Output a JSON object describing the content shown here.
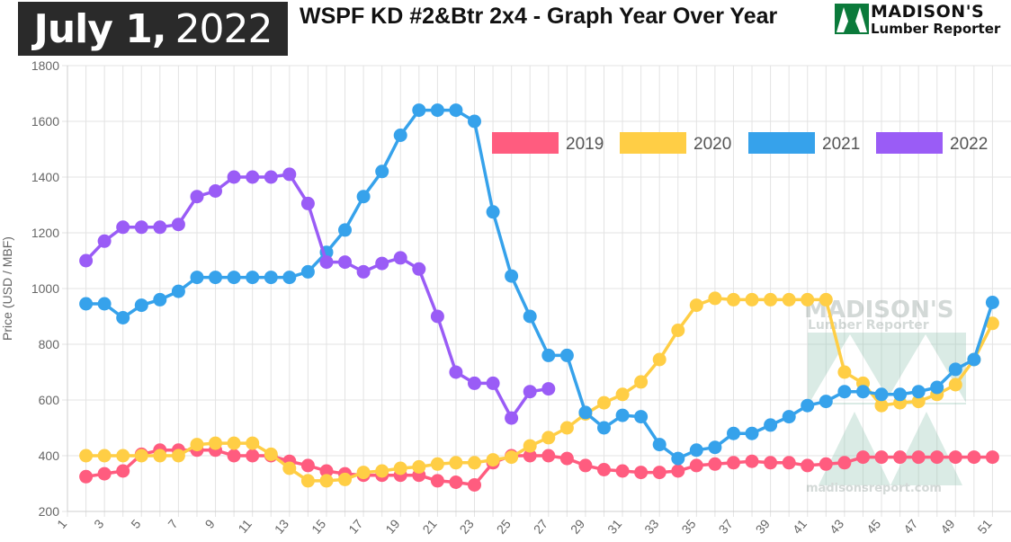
{
  "header": {
    "date_month_day": "July 1,",
    "date_year": "2022",
    "title": "WSPF KD #2&Btr 2x4 - Graph Year Over Year",
    "logo_name": "MADISON'S",
    "logo_sub": "Lumber Reporter"
  },
  "watermark": {
    "name": "MADISON'S",
    "sub": "Lumber Reporter",
    "url": "madisonsreport.com"
  },
  "colors": {
    "2019": "#ff5c7f",
    "2020": "#ffce45",
    "2021": "#36a2eb",
    "2022": "#9a5cf6"
  },
  "chart_data": {
    "type": "line",
    "ylabel": "Price (USD / MBF)",
    "xlabel": "",
    "ylim": [
      200,
      1800
    ],
    "yticks": [
      200,
      400,
      600,
      800,
      1000,
      1200,
      1400,
      1600,
      1800
    ],
    "x": [
      1,
      2,
      3,
      4,
      5,
      6,
      7,
      8,
      9,
      10,
      11,
      12,
      13,
      14,
      15,
      16,
      17,
      18,
      19,
      20,
      21,
      22,
      23,
      24,
      25,
      26,
      27,
      28,
      29,
      30,
      31,
      32,
      33,
      34,
      35,
      36,
      37,
      38,
      39,
      40,
      41,
      42,
      43,
      44,
      45,
      46,
      47,
      48,
      49,
      50,
      51
    ],
    "xtick_labels": [
      "1",
      "3",
      "5",
      "7",
      "9",
      "11",
      "13",
      "15",
      "17",
      "19",
      "21",
      "23",
      "25",
      "27",
      "29",
      "31",
      "33",
      "35",
      "37",
      "39",
      "41",
      "43",
      "45",
      "47",
      "49",
      "51"
    ],
    "grid": true,
    "legend_position": "top-right",
    "series": [
      {
        "name": "2019",
        "x": [
          2,
          3,
          4,
          5,
          6,
          7,
          8,
          9,
          10,
          11,
          12,
          13,
          14,
          15,
          16,
          17,
          18,
          19,
          20,
          21,
          22,
          23,
          24,
          25,
          26,
          27,
          28,
          29,
          30,
          31,
          32,
          33,
          34,
          35,
          36,
          37,
          38,
          39,
          40,
          41,
          42,
          43,
          44,
          45,
          46,
          47,
          48,
          49,
          50,
          51
        ],
        "values": [
          325,
          335,
          345,
          405,
          420,
          420,
          420,
          420,
          400,
          400,
          400,
          380,
          365,
          345,
          335,
          330,
          330,
          330,
          330,
          310,
          305,
          295,
          375,
          400,
          400,
          400,
          390,
          365,
          350,
          345,
          340,
          340,
          345,
          365,
          370,
          375,
          380,
          375,
          375,
          365,
          370,
          375,
          395,
          395,
          395,
          395,
          395,
          395,
          395,
          395
        ]
      },
      {
        "name": "2020",
        "x": [
          2,
          3,
          4,
          5,
          6,
          7,
          8,
          9,
          10,
          11,
          12,
          13,
          14,
          15,
          16,
          17,
          18,
          19,
          20,
          21,
          22,
          23,
          24,
          25,
          26,
          27,
          28,
          29,
          30,
          31,
          32,
          33,
          34,
          35,
          36,
          37,
          38,
          39,
          40,
          41,
          42,
          43,
          44,
          45,
          46,
          47,
          48,
          49,
          50,
          51
        ],
        "values": [
          400,
          400,
          400,
          400,
          400,
          400,
          440,
          445,
          445,
          445,
          405,
          355,
          310,
          310,
          315,
          340,
          345,
          355,
          360,
          370,
          375,
          375,
          385,
          395,
          435,
          465,
          500,
          550,
          590,
          620,
          665,
          745,
          850,
          940,
          965,
          960,
          960,
          960,
          960,
          960,
          960,
          700,
          660,
          580,
          590,
          595,
          620,
          655,
          745,
          875
        ]
      },
      {
        "name": "2021",
        "x": [
          2,
          3,
          4,
          5,
          6,
          7,
          8,
          9,
          10,
          11,
          12,
          13,
          14,
          15,
          16,
          17,
          18,
          19,
          20,
          21,
          22,
          23,
          24,
          25,
          26,
          27,
          28,
          29,
          30,
          31,
          32,
          33,
          34,
          35,
          36,
          37,
          38,
          39,
          40,
          41,
          42,
          43,
          44,
          45,
          46,
          47,
          48,
          49,
          50,
          51
        ],
        "values": [
          945,
          945,
          895,
          940,
          960,
          990,
          1040,
          1040,
          1040,
          1040,
          1040,
          1040,
          1060,
          1130,
          1210,
          1330,
          1420,
          1550,
          1640,
          1640,
          1640,
          1600,
          1275,
          1045,
          900,
          760,
          760,
          555,
          500,
          545,
          540,
          440,
          390,
          420,
          430,
          480,
          480,
          510,
          540,
          580,
          595,
          630,
          630,
          620,
          620,
          630,
          645,
          710,
          745,
          950
        ]
      },
      {
        "name": "2022",
        "x": [
          2,
          3,
          4,
          5,
          6,
          7,
          8,
          9,
          10,
          11,
          12,
          13,
          14,
          15,
          16,
          17,
          18,
          19,
          20,
          21,
          22,
          23,
          24,
          25,
          26,
          27
        ],
        "values": [
          1100,
          1170,
          1220,
          1220,
          1220,
          1230,
          1330,
          1350,
          1400,
          1400,
          1400,
          1410,
          1305,
          1095,
          1095,
          1060,
          1090,
          1110,
          1070,
          900,
          700,
          660,
          660,
          535,
          630,
          640
        ]
      }
    ]
  }
}
